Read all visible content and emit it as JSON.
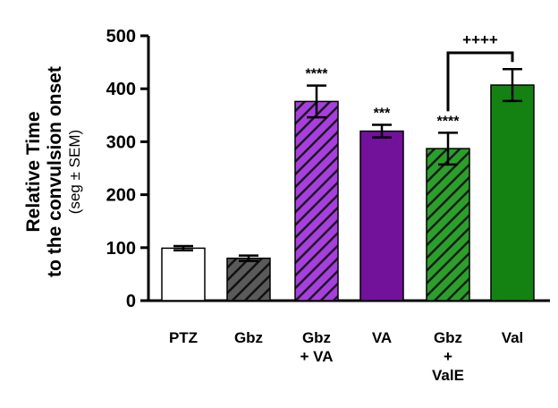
{
  "chart_data": {
    "type": "bar",
    "title": "",
    "ylabel": {
      "line1": "Relative Time",
      "line2": "to the convulsion onset",
      "line3": "(seg ± SEM)"
    },
    "xlabel": "",
    "ylim": [
      0,
      500
    ],
    "yticks": [
      0,
      100,
      200,
      300,
      400,
      500
    ],
    "categories": [
      {
        "id": "ptz",
        "lines": [
          "PTZ"
        ]
      },
      {
        "id": "gbz",
        "lines": [
          "Gbz"
        ]
      },
      {
        "id": "gbz-va",
        "lines": [
          "Gbz",
          "+ VA"
        ]
      },
      {
        "id": "va",
        "lines": [
          "VA"
        ]
      },
      {
        "id": "gbz-vale",
        "lines": [
          "Gbz",
          "+",
          "ValE"
        ]
      },
      {
        "id": "val",
        "lines": [
          "Val"
        ]
      }
    ],
    "values": [
      99,
      80,
      376,
      320,
      287,
      407
    ],
    "sem": [
      4,
      5,
      30,
      12,
      30,
      30
    ],
    "fill_colors": [
      "#ffffff",
      "#5a5a5a",
      "#8a1fbf",
      "#72129a",
      "#1f8a1f",
      "#138213"
    ],
    "hatched": [
      false,
      true,
      true,
      false,
      true,
      false
    ],
    "significance": [
      {
        "bar": 2,
        "label": "****"
      },
      {
        "bar": 3,
        "label": "***"
      },
      {
        "bar": 4,
        "label": "****"
      }
    ],
    "comparison": {
      "from": 4,
      "to": 5,
      "label": "++++"
    }
  }
}
